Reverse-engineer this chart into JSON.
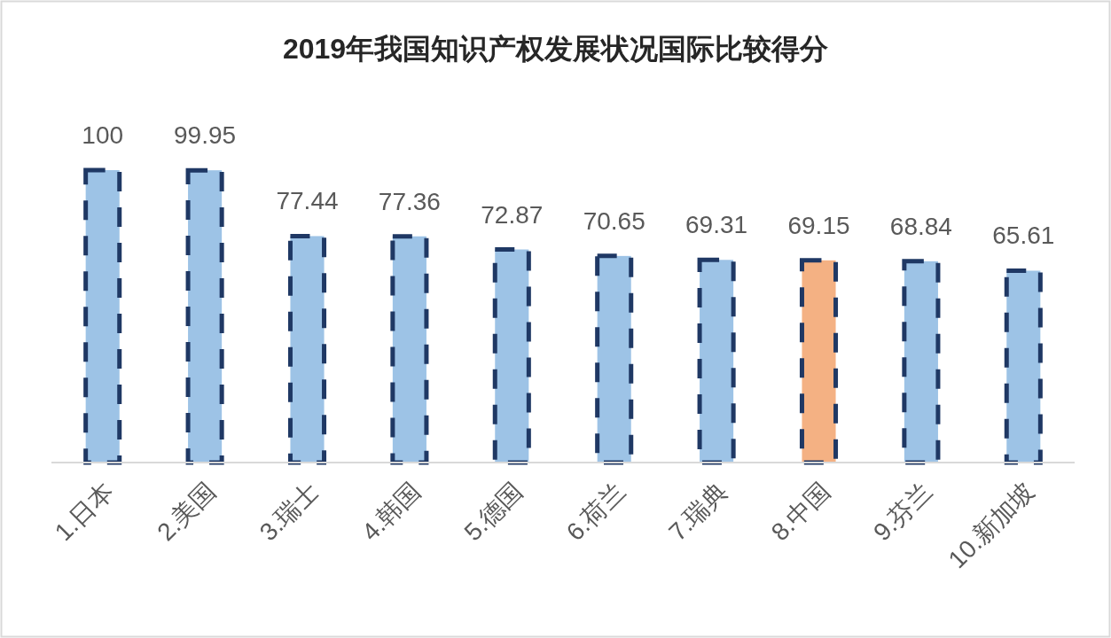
{
  "chart_data": {
    "type": "bar",
    "title": "2019年我国知识产权发展状况国际比较得分",
    "categories": [
      "1.日本",
      "2.美国",
      "3.瑞士",
      "4.韩国",
      "5.德国",
      "6.荷兰",
      "7.瑞典",
      "8.中国",
      "9.芬兰",
      "10.新加坡"
    ],
    "values": [
      100,
      99.95,
      77.44,
      77.36,
      72.87,
      70.65,
      69.31,
      69.15,
      68.84,
      65.61
    ],
    "colors": [
      "#9dc3e6",
      "#9dc3e6",
      "#9dc3e6",
      "#9dc3e6",
      "#9dc3e6",
      "#9dc3e6",
      "#9dc3e6",
      "#f4b183",
      "#9dc3e6",
      "#9dc3e6"
    ],
    "data_labels": true
  }
}
